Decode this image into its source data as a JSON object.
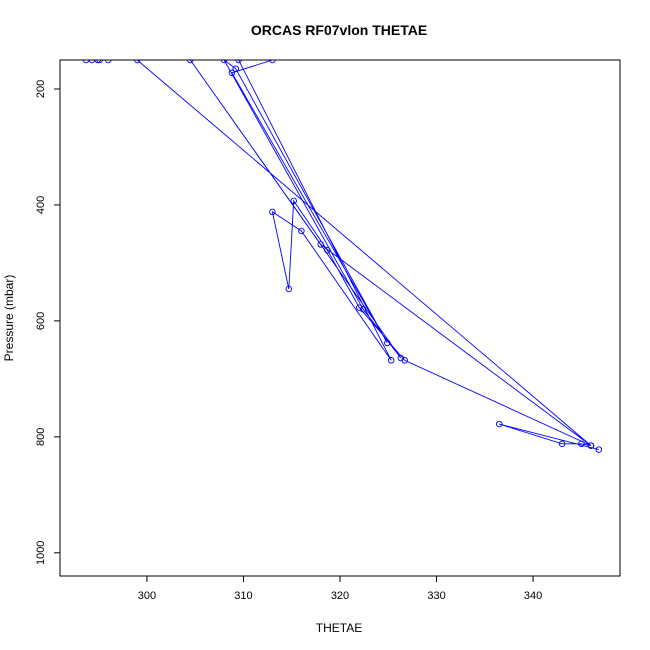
{
  "chart_data": {
    "type": "line",
    "title": "ORCAS RF07vlon THETAE",
    "xlabel": "THETAE",
    "ylabel": "Pressure (mbar)",
    "xlim": [
      291,
      349
    ],
    "ylim": [
      1040,
      150
    ],
    "y_reversed": true,
    "grid": false,
    "legend": "none",
    "x_ticks": [
      300,
      310,
      320,
      330,
      340
    ],
    "y_ticks": [
      200,
      400,
      600,
      800,
      1000
    ],
    "series": [
      {
        "color": "#0000ff",
        "points": [
          [
            346.8,
            822
          ],
          [
            336.5,
            778
          ],
          [
            343.0,
            812
          ],
          [
            345.0,
            812
          ],
          [
            346.0,
            815
          ],
          [
            326.7,
            668
          ],
          [
            322.0,
            577
          ],
          [
            318.7,
            478
          ],
          [
            315.2,
            393
          ],
          [
            314.7,
            545
          ],
          [
            313.0,
            412
          ],
          [
            316.0,
            445
          ],
          [
            325.3,
            668
          ],
          [
            309.5,
            150
          ],
          [
            313.0,
            150
          ],
          [
            308.8,
            172
          ],
          [
            324.9,
            638
          ],
          [
            309.2,
            165
          ],
          [
            308.0,
            150
          ],
          [
            322.4,
            580
          ],
          [
            326.3,
            664
          ],
          [
            304.5,
            150
          ],
          [
            318.0,
            468
          ],
          [
            346.0,
            815
          ],
          [
            299.0,
            150
          ],
          [
            296.0,
            150
          ],
          [
            295.1,
            150
          ],
          [
            294.9,
            150
          ],
          [
            294.3,
            150
          ],
          [
            293.7,
            150
          ]
        ]
      }
    ]
  }
}
